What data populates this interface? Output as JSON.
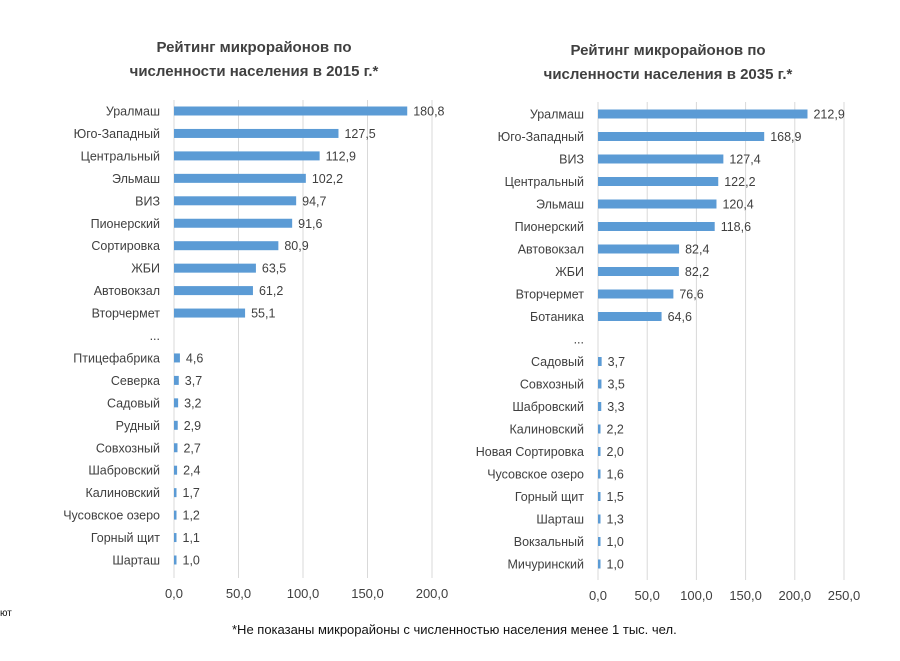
{
  "chart_data": [
    {
      "type": "bar",
      "orientation": "horizontal",
      "title_lines": [
        "Рейтинг микрорайонов по",
        "численности населения в 2015 г.*"
      ],
      "categories": [
        "Уралмаш",
        "Юго-Западный",
        "Центральный",
        "Эльмаш",
        "ВИЗ",
        "Пионерский",
        "Сортировка",
        "ЖБИ",
        "Автовокзал",
        "Вторчермет",
        "...",
        "Птицефабрика",
        "Северка",
        "Садовый",
        "Рудный",
        "Совхозный",
        "Шабровский",
        "Калиновский",
        "Чусовское озеро",
        "Горный щит",
        "Шарташ"
      ],
      "values": [
        180.8,
        127.5,
        112.9,
        102.2,
        94.7,
        91.6,
        80.9,
        63.5,
        61.2,
        55.1,
        null,
        4.6,
        3.7,
        3.2,
        2.9,
        2.7,
        2.4,
        1.7,
        1.2,
        1.1,
        1.0
      ],
      "labels": [
        "180,8",
        "127,5",
        "112,9",
        "102,2",
        "94,7",
        "91,6",
        "80,9",
        "63,5",
        "61,2",
        "55,1",
        "",
        "4,6",
        "3,7",
        "3,2",
        "2,9",
        "2,7",
        "2,4",
        "1,7",
        "1,2",
        "1,1",
        "1,0"
      ],
      "xticks": [
        "0,0",
        "50,0",
        "100,0",
        "150,0",
        "200,0"
      ],
      "xlim": [
        0,
        200
      ],
      "grid": true,
      "color": "#5b9bd5"
    },
    {
      "type": "bar",
      "orientation": "horizontal",
      "title_lines": [
        "Рейтинг микрорайонов по",
        "численности населения в 2035 г.*"
      ],
      "categories": [
        "Уралмаш",
        "Юго-Западный",
        "ВИЗ",
        "Центральный",
        "Эльмаш",
        "Пионерский",
        "Автовокзал",
        "ЖБИ",
        "Вторчермет",
        "Ботаника",
        "...",
        "Садовый",
        "Совхозный",
        "Шабровский",
        "Калиновский",
        "Новая Сортировка",
        "Чусовское озеро",
        "Горный щит",
        "Шарташ",
        "Вокзальный",
        "Мичуринский"
      ],
      "values": [
        212.9,
        168.9,
        127.4,
        122.2,
        120.4,
        118.6,
        82.4,
        82.2,
        76.6,
        64.6,
        null,
        3.7,
        3.5,
        3.3,
        2.2,
        2.0,
        1.6,
        1.5,
        1.3,
        1.0,
        1.0
      ],
      "labels": [
        "212,9",
        "168,9",
        "127,4",
        "122,2",
        "120,4",
        "118,6",
        "82,4",
        "82,2",
        "76,6",
        "64,6",
        "",
        "3,7",
        "3,5",
        "3,3",
        "2,2",
        "2,0",
        "1,6",
        "1,5",
        "1,3",
        "1,0",
        "1,0"
      ],
      "xticks": [
        "0,0",
        "50,0",
        "100,0",
        "150,0",
        "200,0",
        "250,0"
      ],
      "xlim": [
        0,
        250
      ],
      "grid": true,
      "color": "#5b9bd5"
    }
  ],
  "footnote": "*Не показаны микрорайоны с численностью населения менее 1 тыс. чел.",
  "edge_fragment": "ют"
}
